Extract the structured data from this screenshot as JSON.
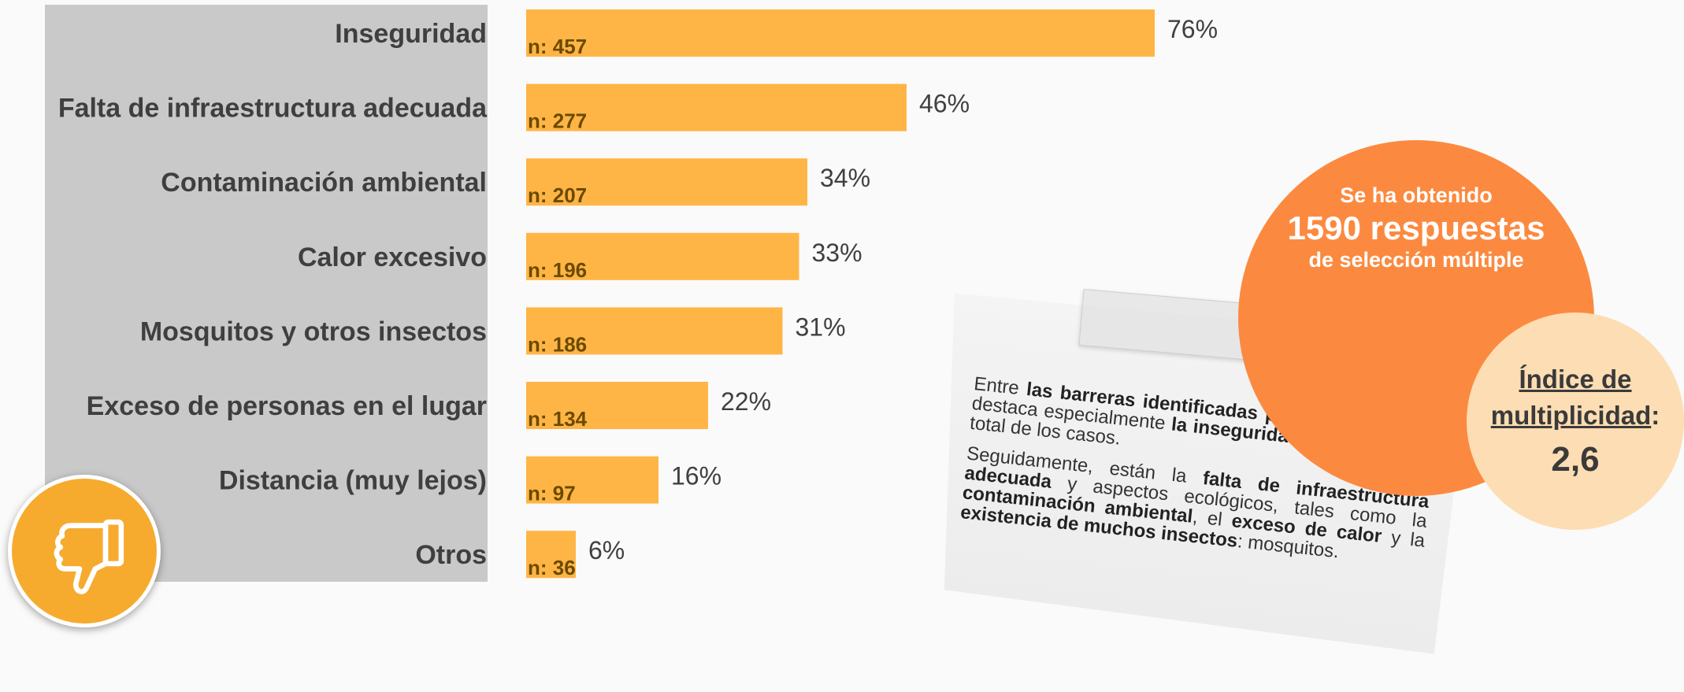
{
  "chart_data": {
    "type": "bar",
    "orientation": "horizontal",
    "categories": [
      "Inseguridad",
      "Falta de infraestructura adecuada",
      "Contaminación ambiental",
      "Calor excesivo",
      "Mosquitos y otros insectos",
      "Exceso de personas en el lugar",
      "Distancia (muy lejos)",
      "Otros"
    ],
    "values": [
      76,
      46,
      34,
      33,
      31,
      22,
      16,
      6
    ],
    "value_labels": [
      "76%",
      "46%",
      "34%",
      "33%",
      "31%",
      "22%",
      "16%",
      "6%"
    ],
    "counts": [
      "n: 457",
      "n: 277",
      "n: 207",
      "n: 196",
      "n: 186",
      "n: 134",
      "n: 97",
      "n: 36"
    ],
    "xlim": [
      0,
      100
    ],
    "grid": false,
    "bar_color": "#ffb545",
    "label_panel_color": "#c9c9c9"
  },
  "icon": "thumbs-down-icon",
  "summary_circle": {
    "line1": "Se ha obtenido",
    "line2": "1590 respuestas",
    "line3": "de selección múltiple",
    "color": "#fb8a40"
  },
  "index_circle": {
    "line1": "Índice de",
    "line2": "multiplicidad",
    "colon": ":",
    "value": "2,6",
    "color": "#fdddb3"
  },
  "note": {
    "p1_a": "Entre ",
    "p1_b": "las barreras identificadas para el uso de EV",
    "p1_c": ", destaca especialmente ",
    "p1_d": "la inseguridad – 76%",
    "p1_e": " sobre el total de los casos.",
    "p2_a": "Seguidamente, están la ",
    "p2_b": "falta de infraestructura adecuada",
    "p2_c": " y aspectos ecológicos, tales como la ",
    "p2_d": "contaminación ambiental",
    "p2_e": ", el ",
    "p2_f": "exceso de calor",
    "p2_g": " y la ",
    "p2_h": "existencia de muchos insectos",
    "p2_i": ": mosquitos."
  }
}
